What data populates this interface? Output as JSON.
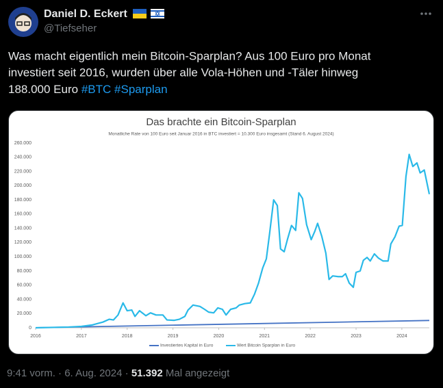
{
  "tweet": {
    "author": "Daniel D. Eckert",
    "handle": "@Tiefseher",
    "text_lines": [
      "Was macht eigentlich mein Bitcoin-Sparplan? Aus 100 Euro pro Monat",
      "investiert seit 2016, wurden über alle Vola-Höhen und -Täler hinweg",
      "188.000 Euro"
    ],
    "hashtags": [
      "#BTC",
      "#Sparplan"
    ]
  },
  "footer": {
    "time": "9:41 vorm.",
    "separator": "·",
    "date": "6. Aug. 2024",
    "views": "51.392",
    "views_label": "Mal angezeigt"
  },
  "chart_data": {
    "type": "line",
    "title": "Das brachte ein Bitcoin-Sparplan",
    "subtitle": "Monatliche Rate von 100 Euro seit Januar 2016 in BTC investiert = 10.300 Euro insgesamt (Stand 6. August 2024)",
    "xlim": [
      2016,
      2024.6
    ],
    "xticks": [
      2016,
      2017,
      2018,
      2019,
      2020,
      2021,
      2022,
      2023,
      2024
    ],
    "ylim": [
      0,
      260000
    ],
    "yticks": [
      0,
      {
        "value": 20000,
        "label": "20.000"
      },
      {
        "value": 40000,
        "label": "40.000"
      },
      {
        "value": 60000,
        "label": "60.000"
      },
      {
        "value": 80000,
        "label": "80.000"
      },
      {
        "value": 100000,
        "label": "100.000"
      },
      {
        "value": 120000,
        "label": "120.000"
      },
      {
        "value": 140000,
        "label": "140.000"
      },
      {
        "value": 160000,
        "label": "160.000"
      },
      {
        "value": 180000,
        "label": "180.000"
      },
      {
        "value": 200000,
        "label": "200.000"
      },
      {
        "value": 220000,
        "label": "220.000"
      },
      {
        "value": 240000,
        "label": "240.000"
      },
      {
        "value": 260000,
        "label": "260.000"
      }
    ],
    "grid": false,
    "series": [
      {
        "name": "Investiertes Kapital in Euro",
        "color": "#4472c4",
        "x": [
          2016,
          2024.6
        ],
        "values": [
          100,
          10300
        ]
      },
      {
        "name": "Wert Bitcoin Sparplan in Euro",
        "color": "#29b9e8",
        "x": [
          2016,
          2016.72,
          2017.0,
          2017.24,
          2017.47,
          2017.61,
          2017.7,
          2017.8,
          2017.91,
          2018.0,
          2018.1,
          2018.17,
          2018.27,
          2018.41,
          2018.51,
          2018.63,
          2018.78,
          2018.87,
          2019.03,
          2019.14,
          2019.26,
          2019.33,
          2019.44,
          2019.59,
          2019.69,
          2019.78,
          2019.89,
          2019.98,
          2020.08,
          2020.16,
          2020.26,
          2020.38,
          2020.45,
          2020.57,
          2020.69,
          2020.78,
          2020.87,
          2020.96,
          2021.04,
          2021.11,
          2021.2,
          2021.28,
          2021.35,
          2021.43,
          2021.5,
          2021.59,
          2021.68,
          2021.75,
          2021.83,
          2021.92,
          2022.02,
          2022.1,
          2022.16,
          2022.25,
          2022.34,
          2022.41,
          2022.49,
          2022.61,
          2022.7,
          2022.77,
          2022.85,
          2022.94,
          2023.0,
          2023.09,
          2023.16,
          2023.24,
          2023.31,
          2023.4,
          2023.49,
          2023.59,
          2023.7,
          2023.76,
          2023.85,
          2023.94,
          2024.01,
          2024.09,
          2024.16,
          2024.24,
          2024.33,
          2024.4,
          2024.49,
          2024.6
        ],
        "values": [
          0,
          1000,
          2000,
          4000,
          8000,
          12000,
          11000,
          18000,
          35000,
          24000,
          25000,
          16000,
          24000,
          17000,
          21000,
          18000,
          18000,
          11000,
          10500,
          12000,
          16000,
          25000,
          32000,
          30000,
          26000,
          22000,
          21000,
          28000,
          26000,
          18000,
          26000,
          28000,
          32000,
          34000,
          35000,
          47000,
          63000,
          84000,
          97000,
          132000,
          180000,
          172000,
          111000,
          107000,
          124000,
          144000,
          137000,
          190000,
          182000,
          145000,
          124000,
          136000,
          147000,
          129000,
          105000,
          68000,
          73000,
          72000,
          72000,
          76000,
          63000,
          57000,
          78000,
          80000,
          95000,
          99000,
          94000,
          104000,
          98000,
          94000,
          94000,
          118000,
          128000,
          143000,
          144000,
          213000,
          244000,
          227000,
          232000,
          218000,
          222000,
          188000
        ]
      }
    ]
  }
}
